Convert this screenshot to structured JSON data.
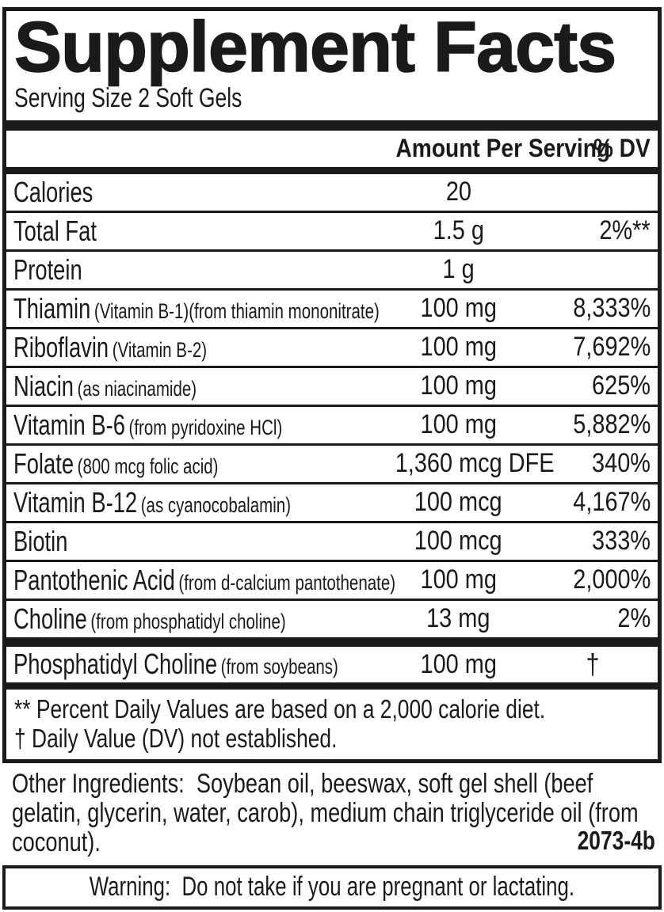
{
  "label": {
    "title": "Supplement Facts",
    "serving_size": "Serving Size 2 Soft Gels",
    "colors": {
      "ink": "#1a1a1a",
      "background": "#ffffff"
    },
    "table": {
      "header": {
        "amount": "Amount Per Serving",
        "dv": "% DV"
      },
      "rows": [
        {
          "name": "Calories",
          "detail": "",
          "amount": "20",
          "dv": ""
        },
        {
          "name": "Total Fat",
          "detail": "",
          "amount": "1.5 g",
          "dv": "2%**"
        },
        {
          "name": "Protein",
          "detail": "",
          "amount": "1 g",
          "dv": ""
        },
        {
          "name": "Thiamin",
          "detail": "(Vitamin B-1)(from thiamin mononitrate)",
          "amount": "100 mg",
          "dv": "8,333%"
        },
        {
          "name": "Riboflavin",
          "detail": "(Vitamin B-2)",
          "amount": "100 mg",
          "dv": "7,692%"
        },
        {
          "name": "Niacin",
          "detail": "(as niacinamide)",
          "amount": "100 mg",
          "dv": "625%"
        },
        {
          "name": "Vitamin B-6",
          "detail": "(from pyridoxine HCl)",
          "amount": "100 mg",
          "dv": "5,882%"
        },
        {
          "name": "Folate",
          "detail": "(800 mcg folic acid)",
          "amount": "1,360 mcg DFE",
          "dv": "340%"
        },
        {
          "name": "Vitamin B-12",
          "detail": "(as cyanocobalamin)",
          "amount": "100 mcg",
          "dv": "4,167%"
        },
        {
          "name": "Biotin",
          "detail": "",
          "amount": "100 mcg",
          "dv": "333%"
        },
        {
          "name": "Pantothenic Acid",
          "detail": "(from d-calcium pantothenate)",
          "amount": "100 mg",
          "dv": "2,000%"
        },
        {
          "name": "Choline",
          "detail": "(from phosphatidyl choline)",
          "amount": "13 mg",
          "dv": "2%"
        }
      ],
      "extra_row": {
        "name": "Phosphatidyl Choline",
        "detail": "(from soybeans)",
        "amount": "100 mg",
        "dv": "†"
      }
    },
    "footnotes": [
      "** Percent Daily Values are based on a 2,000 calorie diet.",
      "† Daily Value (DV) not established."
    ],
    "other_ingredients": "Other Ingredients:  Soybean oil, beeswax, soft gel shell (beef gelatin, glycerin, water, carob), medium chain triglyceride oil (from coconut).",
    "product_code": "2073-4b",
    "warning": "Warning:  Do not take if you are pregnant or lactating."
  }
}
